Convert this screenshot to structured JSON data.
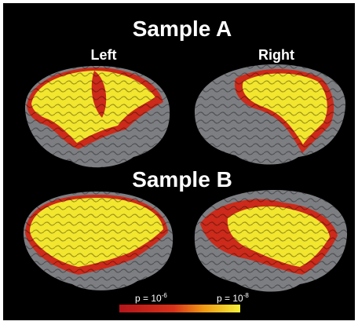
{
  "figure": {
    "sample_a": {
      "title": "Sample A",
      "left_label": "Left",
      "right_label": "Right"
    },
    "sample_b": {
      "title": "Sample B"
    },
    "colorbar": {
      "low": {
        "base": "p = 10",
        "exponent": "-6"
      },
      "high": {
        "base": "p = 10",
        "exponent": "-8"
      }
    }
  }
}
